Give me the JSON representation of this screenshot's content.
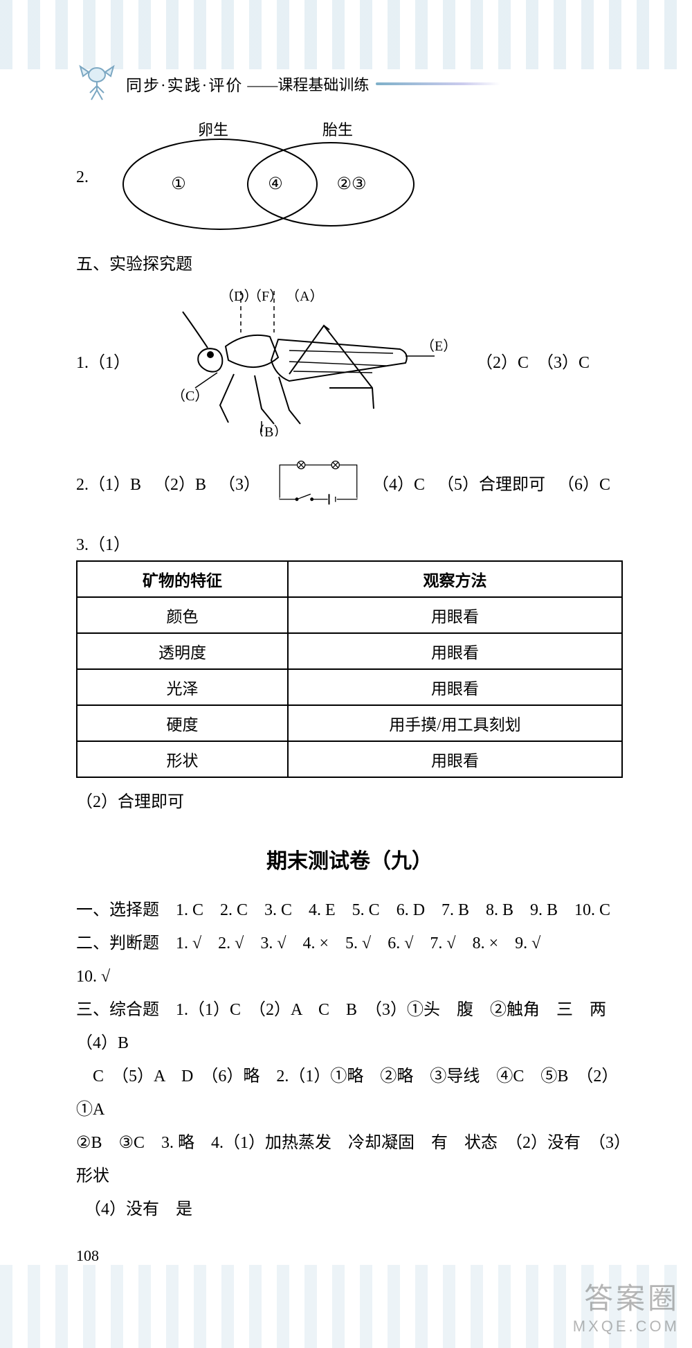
{
  "header": {
    "title_main": "同步·实践·评价",
    "title_sub": "——课程基础训练"
  },
  "venn": {
    "q_num": "2.",
    "left_label": "卵生",
    "right_label": "胎生",
    "left_zone": "①",
    "mid_zone": "④",
    "right_zone": "②③",
    "stroke": "#000000",
    "fontsize": 22
  },
  "section5": {
    "title": "五、实验探究题"
  },
  "insect": {
    "q": "1.（1）",
    "labels": {
      "A": "（A）",
      "B": "（B）",
      "C": "（C）",
      "D": "（D）",
      "E": "（E）",
      "F": "（F）"
    },
    "right_text": "（2）C　（3）C",
    "stroke": "#000000"
  },
  "circuit": {
    "parts": [
      "2.（1）B",
      "（2）B",
      "（3）"
    ],
    "after": [
      "（4）C",
      "（5）合理即可",
      "（6）C"
    ],
    "stroke": "#000000"
  },
  "q3": {
    "lead": "3.（1）"
  },
  "mineral_table": {
    "columns": [
      "矿物的特征",
      "观察方法"
    ],
    "rows": [
      [
        "颜色",
        "用眼看"
      ],
      [
        "透明度",
        "用眼看"
      ],
      [
        "光泽",
        "用眼看"
      ],
      [
        "硬度",
        "用手摸/用工具刻划"
      ],
      [
        "形状",
        "用眼看"
      ]
    ],
    "border_color": "#000000",
    "header_fontsize": 23
  },
  "q3_2": "（2）合理即可",
  "test9": {
    "title": "期末测试卷（九）",
    "s1": "一、选择题　1. C　2. C　3. C　4. E　5. C　6. D　7. B　8. B　9. B　10. C",
    "s2a": "二、判断题　1. √　2. √　3. √　4. ×　5. √　6. √　7. √　8. ×　9. √",
    "s2b": "10. √",
    "s3a": "三、综合题　1.（1）C　（2）A　C　B　（3）①头　腹　②触角　三　两　（4）B",
    "s3b": "　C　（5）A　D　（6）略　2.（1）①略　②略　③导线　④C　⑤B　（2）①A",
    "s3c": "②B　③C　3. 略　4.（1）加热蒸发　冷却凝固　有　状态　（2）没有　（3）形状",
    "s3d": "　（4）没有　是"
  },
  "page_number": "108",
  "watermark": {
    "line1": "答案圈",
    "line2": "MXQE.COM"
  },
  "colors": {
    "text": "#000000",
    "header_accent": "#6aa0bd"
  }
}
